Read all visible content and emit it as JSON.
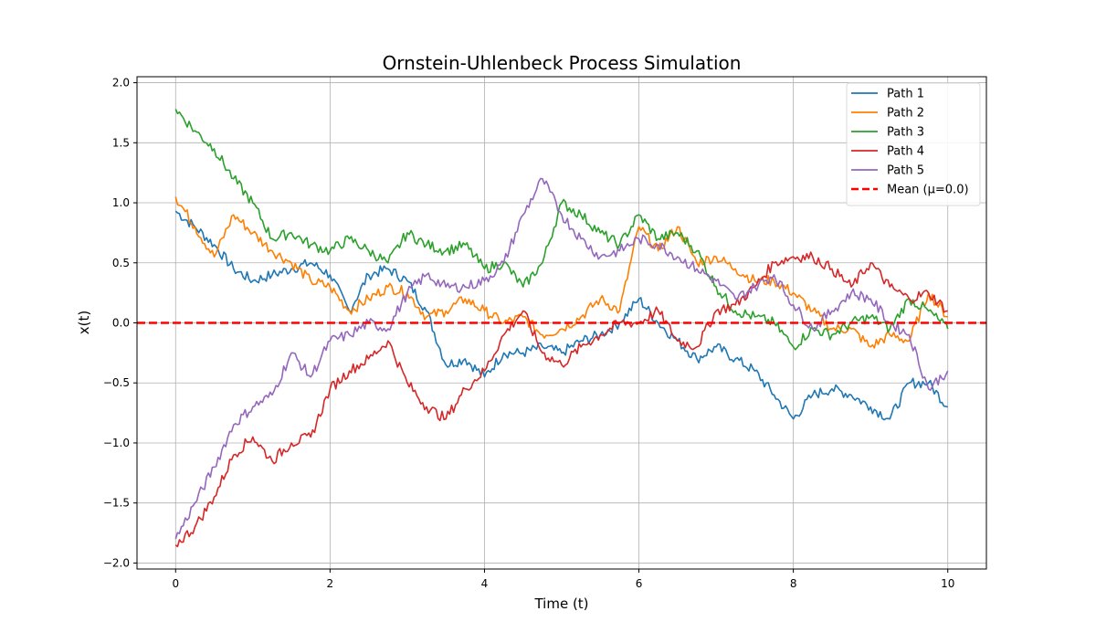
{
  "chart_data": {
    "type": "line",
    "title": "Ornstein-Uhlenbeck Process Simulation",
    "xlabel": "Time (t)",
    "ylabel": "x(t)",
    "xlim": [
      -0.5,
      10.5
    ],
    "ylim": [
      -2.05,
      2.05
    ],
    "xticks": [
      0,
      2,
      4,
      6,
      8,
      10
    ],
    "xtick_labels": [
      "0",
      "2",
      "4",
      "6",
      "8",
      "10"
    ],
    "yticks": [
      -2.0,
      -1.5,
      -1.0,
      -0.5,
      0.0,
      0.5,
      1.0,
      1.5,
      2.0
    ],
    "ytick_labels": [
      "−2.0",
      "−1.5",
      "−1.0",
      "−0.5",
      "0.0",
      "0.5",
      "1.0",
      "1.5",
      "2.0"
    ],
    "grid": true,
    "legend_position": "top-right",
    "x": [
      0,
      0.25,
      0.5,
      0.75,
      1.0,
      1.25,
      1.5,
      1.75,
      2.0,
      2.25,
      2.5,
      2.75,
      3.0,
      3.25,
      3.5,
      3.75,
      4.0,
      4.25,
      4.5,
      4.75,
      5.0,
      5.25,
      5.5,
      5.75,
      6.0,
      6.25,
      6.5,
      6.75,
      7.0,
      7.25,
      7.5,
      7.75,
      8.0,
      8.25,
      8.5,
      8.75,
      9.0,
      9.25,
      9.5,
      9.75,
      10.0
    ],
    "series": [
      {
        "name": "Path 1",
        "color": "#1f77b4",
        "values": [
          0.93,
          0.8,
          0.65,
          0.45,
          0.35,
          0.4,
          0.45,
          0.5,
          0.4,
          0.1,
          0.4,
          0.45,
          0.35,
          0.1,
          -0.35,
          -0.3,
          -0.45,
          -0.25,
          -0.25,
          -0.2,
          -0.25,
          -0.15,
          -0.1,
          0.0,
          0.2,
          0.0,
          -0.15,
          -0.3,
          -0.2,
          -0.3,
          -0.4,
          -0.6,
          -0.8,
          -0.6,
          -0.55,
          -0.6,
          -0.7,
          -0.8,
          -0.5,
          -0.5,
          -0.7
        ]
      },
      {
        "name": "Path 2",
        "color": "#ff7f00",
        "values": [
          1.05,
          0.8,
          0.55,
          0.9,
          0.75,
          0.6,
          0.5,
          0.35,
          0.3,
          0.1,
          0.2,
          0.3,
          0.25,
          0.05,
          0.1,
          0.2,
          0.1,
          0.0,
          0.05,
          -0.1,
          -0.05,
          0.05,
          0.2,
          0.1,
          0.8,
          0.6,
          0.8,
          0.5,
          0.55,
          0.45,
          0.35,
          0.35,
          0.25,
          0.1,
          -0.05,
          -0.05,
          -0.2,
          -0.1,
          -0.15,
          0.25,
          0.05
        ]
      },
      {
        "name": "Path 3",
        "color": "#2ca02c",
        "values": [
          1.78,
          1.6,
          1.45,
          1.2,
          1.0,
          0.7,
          0.75,
          0.65,
          0.6,
          0.7,
          0.6,
          0.5,
          0.75,
          0.65,
          0.6,
          0.65,
          0.45,
          0.5,
          0.3,
          0.5,
          1.0,
          0.9,
          0.75,
          0.65,
          0.9,
          0.7,
          0.75,
          0.6,
          0.3,
          0.1,
          0.05,
          0.0,
          -0.2,
          -0.05,
          -0.1,
          0.0,
          0.05,
          -0.05,
          0.2,
          0.1,
          -0.05
        ]
      },
      {
        "name": "Path 4",
        "color": "#d62728",
        "values": [
          -1.85,
          -1.7,
          -1.45,
          -1.1,
          -0.95,
          -1.15,
          -1.0,
          -0.95,
          -0.55,
          -0.4,
          -0.3,
          -0.15,
          -0.5,
          -0.7,
          -0.8,
          -0.55,
          -0.4,
          -0.1,
          0.1,
          -0.25,
          -0.35,
          -0.2,
          -0.1,
          0.0,
          0.0,
          0.1,
          -0.15,
          -0.2,
          0.1,
          0.15,
          0.3,
          0.5,
          0.55,
          0.55,
          0.45,
          0.3,
          0.5,
          0.3,
          0.2,
          0.25,
          0.1
        ]
      },
      {
        "name": "Path 5",
        "color": "#9467bd",
        "values": [
          -1.8,
          -1.5,
          -1.2,
          -0.85,
          -0.7,
          -0.6,
          -0.25,
          -0.45,
          -0.15,
          -0.1,
          0.0,
          -0.05,
          0.25,
          0.4,
          0.3,
          0.3,
          0.35,
          0.5,
          0.9,
          1.2,
          0.9,
          0.7,
          0.55,
          0.6,
          0.7,
          0.65,
          0.55,
          0.45,
          0.35,
          0.2,
          0.3,
          0.4,
          0.15,
          -0.05,
          0.1,
          0.25,
          0.2,
          0.0,
          -0.1,
          -0.55,
          -0.4
        ]
      }
    ],
    "reference_lines": [
      {
        "name": "Mean (μ=0.0)",
        "y": 0.0,
        "color": "#ff0000",
        "style": "dashed"
      }
    ]
  }
}
